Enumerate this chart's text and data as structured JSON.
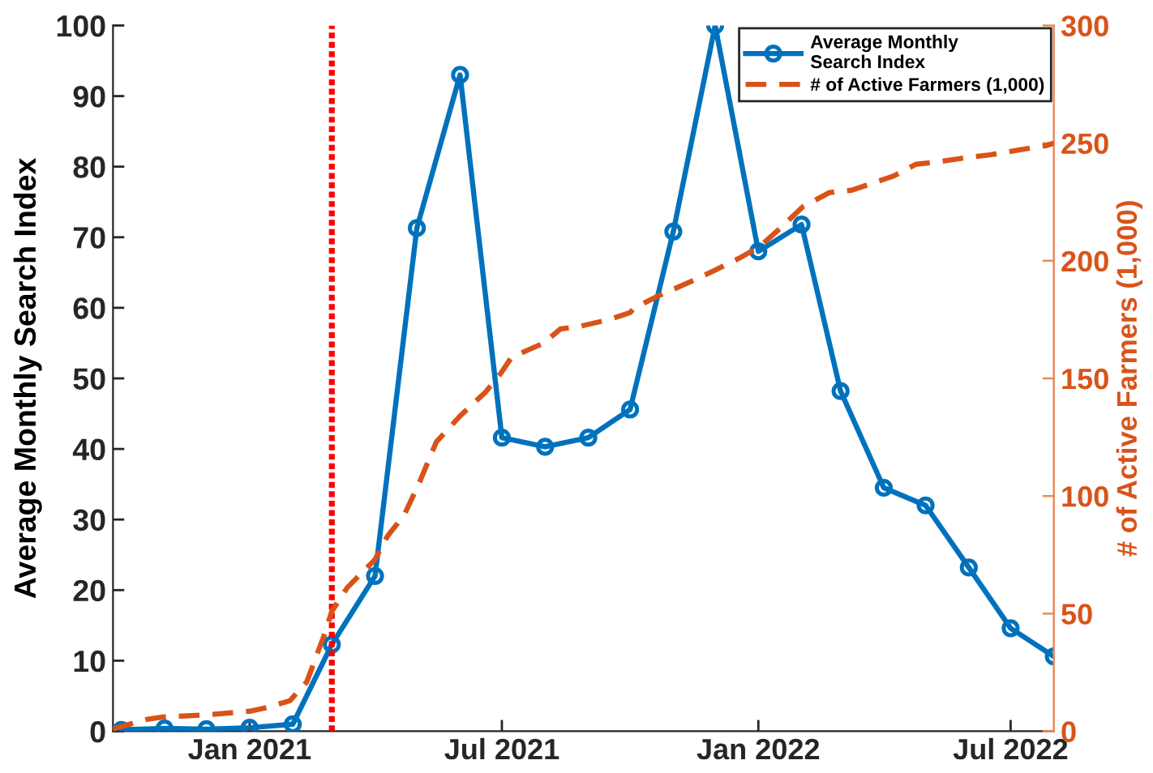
{
  "chart_data": {
    "type": "line",
    "ylabel": "Average Monthly Search Index",
    "y2label": "# of Active Farmers (1,000)",
    "xlim": [
      "2020-09-25",
      "2022-08-01"
    ],
    "xticks": [
      {
        "value": "2021-01-01",
        "label": "Jan 2021"
      },
      {
        "value": "2021-07-01",
        "label": "Jul 2021"
      },
      {
        "value": "2022-01-01",
        "label": "Jan 2022"
      },
      {
        "value": "2022-07-01",
        "label": "Jul 2022"
      }
    ],
    "ylim": [
      0,
      100
    ],
    "yticks": [
      0,
      10,
      20,
      30,
      40,
      50,
      60,
      70,
      80,
      90,
      100
    ],
    "y2lim": [
      0,
      300
    ],
    "y2ticks": [
      0,
      50,
      100,
      150,
      200,
      250,
      300
    ],
    "legend": "top right",
    "series": [
      {
        "name": "Average Monthly\nSearch Index",
        "color": "#0072bd",
        "marker": "circle",
        "line_style": "solid",
        "x": [
          "2020-10-01",
          "2020-11-01",
          "2020-12-01",
          "2021-01-01",
          "2021-02-01",
          "2021-03-01",
          "2021-04-01",
          "2021-05-01",
          "2021-06-01",
          "2021-07-01",
          "2021-08-01",
          "2021-09-01",
          "2021-10-01",
          "2021-11-01",
          "2021-12-01",
          "2022-01-01",
          "2022-02-01",
          "2022-03-01",
          "2022-04-01",
          "2022-05-01",
          "2022-06-01",
          "2022-07-01",
          "2022-08-01"
        ],
        "values": [
          0.2,
          0.4,
          0.3,
          0.5,
          1.0,
          12.3,
          22,
          71.3,
          93,
          41.6,
          40.3,
          41.6,
          45.6,
          70.8,
          100,
          68,
          71.8,
          48.2,
          34.5,
          32,
          23.2,
          14.6,
          10.6
        ]
      },
      {
        "name": "# of Active Farmers (1,000)",
        "color": "#d95319",
        "marker": "none",
        "line_style": "dashed",
        "axis": "y2",
        "x": [
          "2020-09-25",
          "2020-10-19",
          "2020-10-30",
          "2020-12-02",
          "2021-01-01",
          "2021-01-13",
          "2021-01-30",
          "2021-02-11",
          "2021-02-23",
          "2021-03-01",
          "2021-03-12",
          "2021-04-01",
          "2021-04-10",
          "2021-04-22",
          "2021-05-03",
          "2021-05-15",
          "2021-06-01",
          "2021-06-19",
          "2021-06-30",
          "2021-07-08",
          "2021-07-31",
          "2021-08-12",
          "2021-08-25",
          "2021-09-16",
          "2021-10-01",
          "2021-10-04",
          "2021-10-21",
          "2021-11-13",
          "2021-12-01",
          "2021-12-18",
          "2022-01-02",
          "2022-01-17",
          "2022-02-02",
          "2022-02-21",
          "2022-03-09",
          "2022-03-24",
          "2022-04-08",
          "2022-04-24",
          "2022-05-09",
          "2022-06-01",
          "2022-06-16",
          "2022-07-06",
          "2022-07-27",
          "2022-08-01"
        ],
        "values": [
          1,
          5,
          6,
          7,
          8.5,
          10,
          13,
          21,
          40,
          51,
          61,
          73,
          83,
          92,
          106,
          123,
          134,
          144,
          152,
          159,
          165,
          171,
          172,
          175,
          178,
          180,
          185,
          191,
          196,
          201,
          206,
          214,
          223,
          229,
          230,
          233,
          236,
          241,
          242,
          244,
          245,
          247,
          249,
          250
        ]
      }
    ],
    "ref_lines": [
      {
        "axis": "x",
        "value": "2021-03-01",
        "color": "#ff0000",
        "line_style": "dotted"
      }
    ]
  }
}
